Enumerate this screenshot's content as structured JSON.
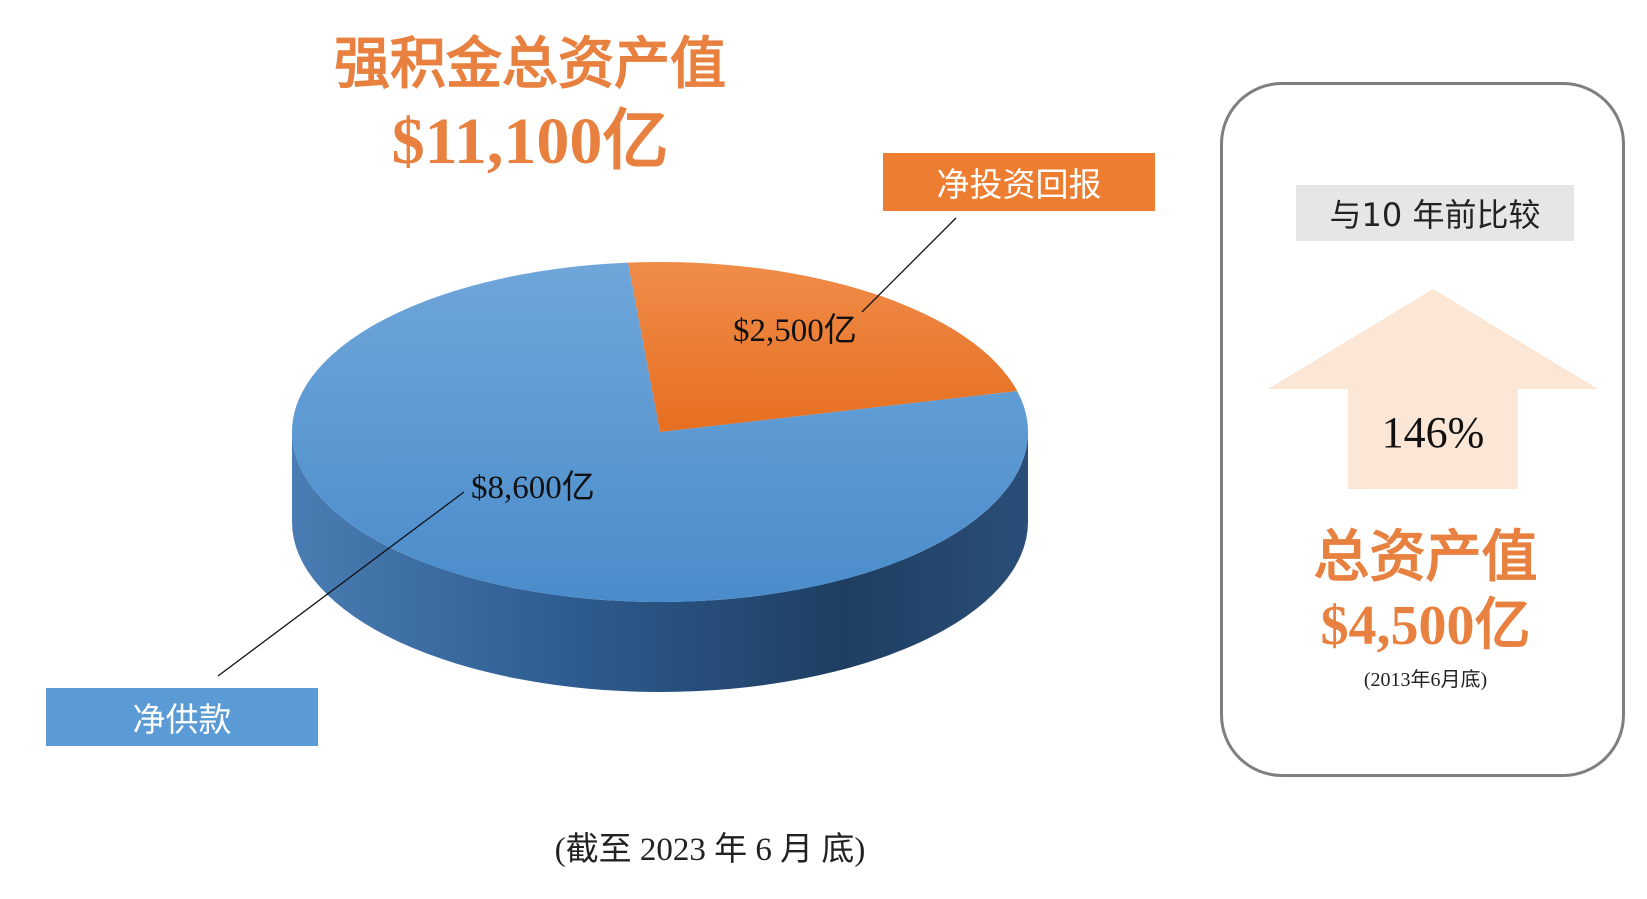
{
  "header": {
    "title": "强积金总资产值",
    "total": "$11,100亿"
  },
  "chart_data": {
    "type": "pie",
    "title": "强积金总资产值",
    "categories": [
      "净投资回报",
      "净供款"
    ],
    "values": [
      2500,
      8600
    ],
    "value_labels": [
      "$2,500亿",
      "$8,600亿"
    ],
    "colors": [
      "#ED7D31",
      "#5B9BD5"
    ]
  },
  "footnote": "(截至 2023 年 6 月 底)",
  "comparison": {
    "badge": "与10 年前比较",
    "growth": "146%",
    "title": "总资产值",
    "value": "$4,500亿",
    "date": "(2013年6月底)"
  }
}
